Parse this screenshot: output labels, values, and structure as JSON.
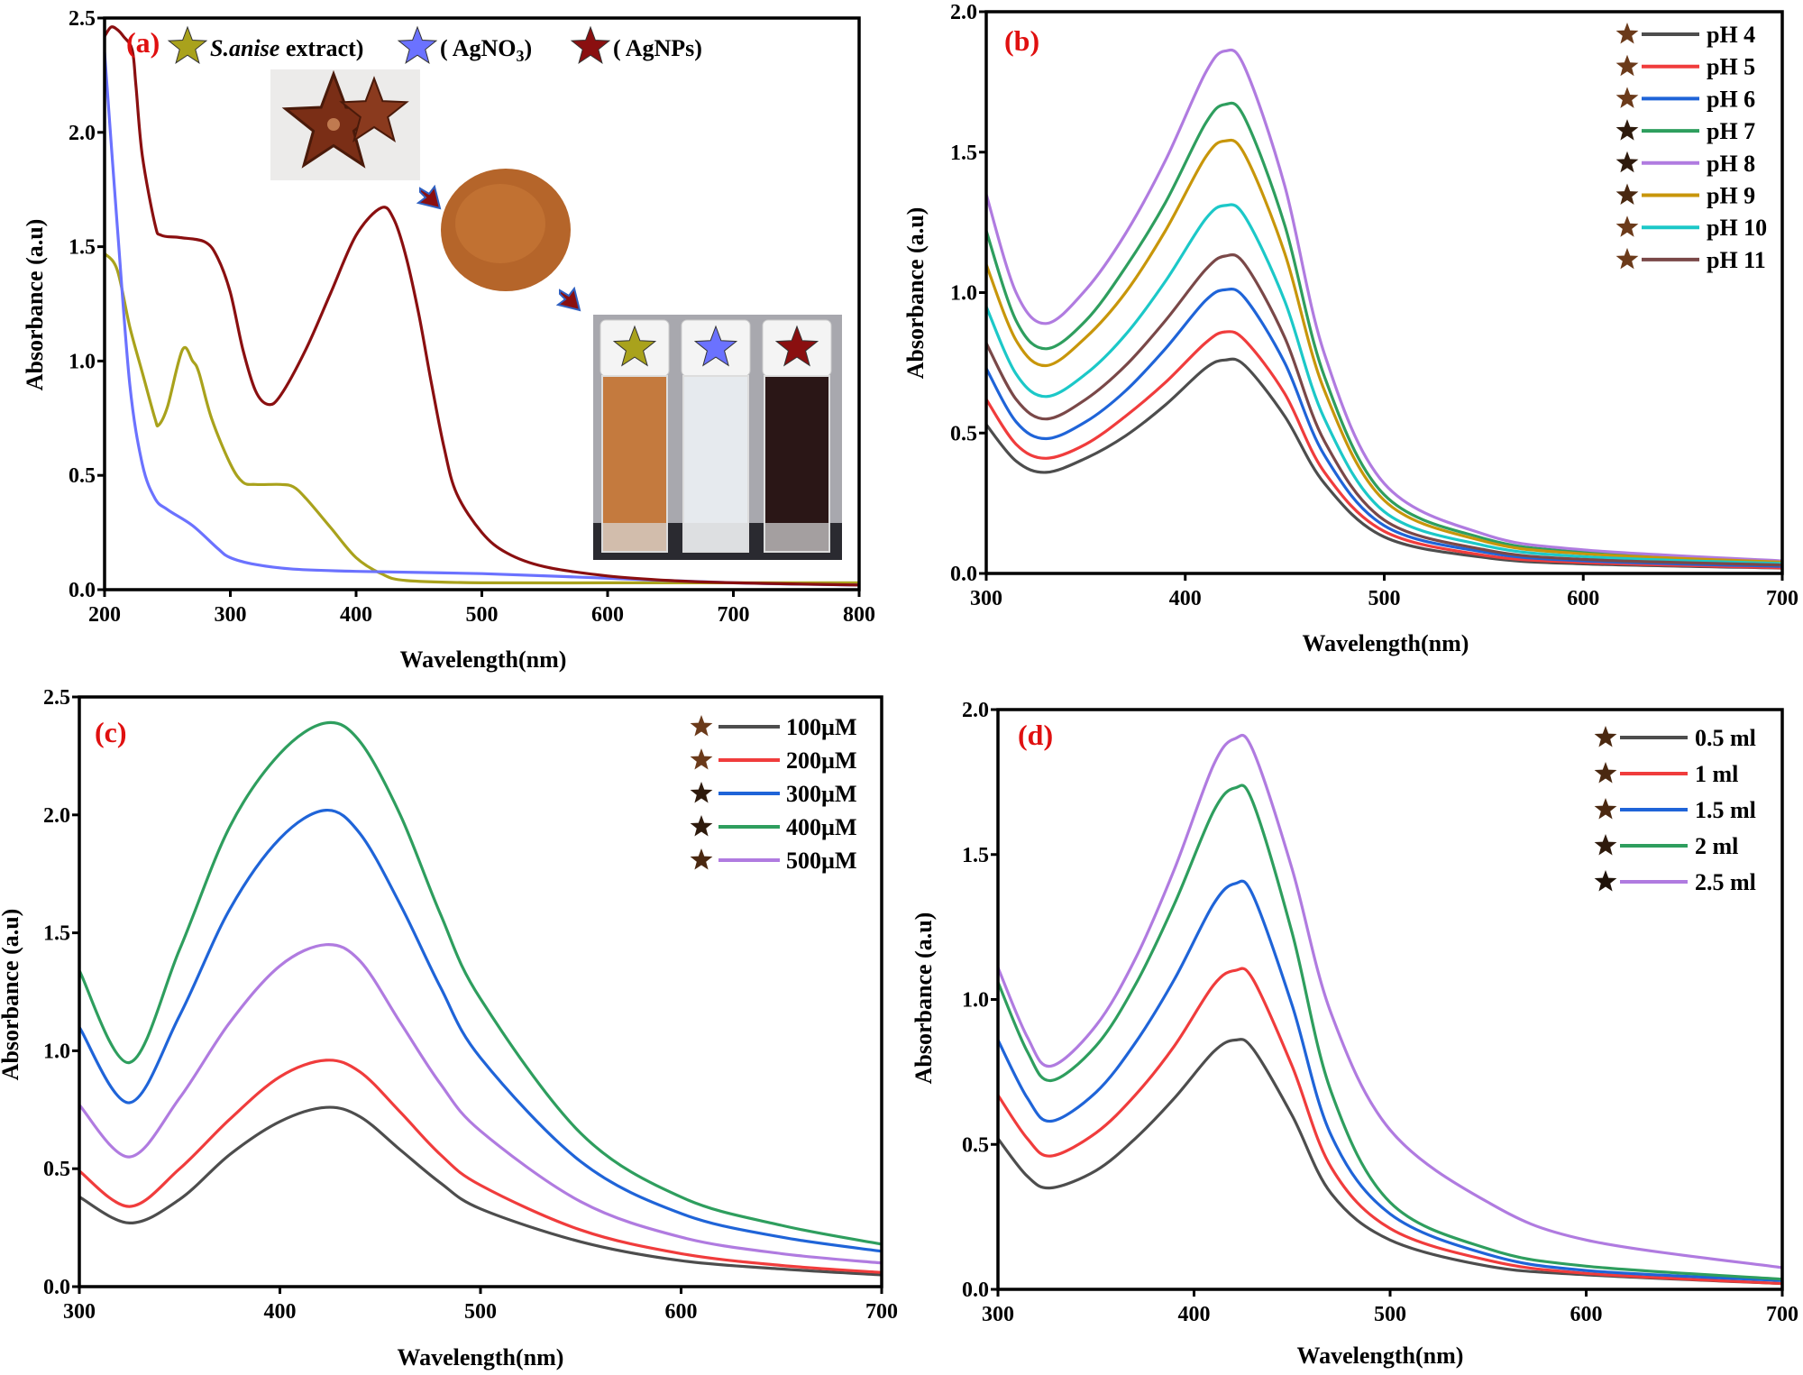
{
  "chart_data": [
    {
      "panel": "(a)",
      "type": "line",
      "xlabel": "Wavelength(nm)",
      "ylabel": "Absorbance (a.u)",
      "xlim": [
        200,
        800
      ],
      "ylim": [
        0,
        2.5
      ],
      "xticks": [
        "200",
        "300",
        "400",
        "500",
        "600",
        "700",
        "800"
      ],
      "yticks": [
        "0.0",
        "0.5",
        "1.0",
        "1.5",
        "2.0",
        "2.5"
      ],
      "legend_position": "top",
      "legend": [
        {
          "italic": "S.anise",
          "text": " extract)",
          "color": "#a9a21c"
        },
        {
          "text": "( AgNO",
          "sub": "3",
          "after": ")",
          "color": "#6b72ff"
        },
        {
          "text": "( AgNPs)",
          "color": "#8a0f10"
        }
      ],
      "series": [
        {
          "name": "S.anise extract",
          "color": "#a9a21c",
          "x": [
            200,
            210,
            220,
            230,
            240,
            243,
            250,
            262,
            270,
            275,
            285,
            300,
            310,
            320,
            340,
            350,
            360,
            380,
            400,
            420,
            440,
            500,
            600,
            700,
            800
          ],
          "y": [
            1.47,
            1.4,
            1.15,
            0.95,
            0.75,
            0.72,
            0.8,
            1.05,
            1.0,
            0.95,
            0.75,
            0.55,
            0.47,
            0.46,
            0.46,
            0.45,
            0.4,
            0.27,
            0.14,
            0.07,
            0.04,
            0.03,
            0.03,
            0.03,
            0.03
          ]
        },
        {
          "name": "AgNO3",
          "color": "#6b72ff",
          "x": [
            200,
            210,
            220,
            230,
            240,
            250,
            270,
            290,
            300,
            320,
            350,
            400,
            500,
            600,
            700,
            800
          ],
          "y": [
            2.35,
            1.6,
            0.9,
            0.55,
            0.4,
            0.35,
            0.28,
            0.18,
            0.14,
            0.11,
            0.09,
            0.08,
            0.07,
            0.05,
            0.03,
            0.02
          ]
        },
        {
          "name": "AgNPs",
          "color": "#8a0f10",
          "x": [
            200,
            205,
            210,
            215,
            222,
            225,
            230,
            240,
            245,
            260,
            280,
            290,
            300,
            310,
            320,
            330,
            340,
            360,
            380,
            400,
            420,
            430,
            440,
            450,
            460,
            470,
            480,
            500,
            520,
            550,
            600,
            650,
            700,
            800
          ],
          "y": [
            2.42,
            2.46,
            2.45,
            2.42,
            2.36,
            2.2,
            1.9,
            1.6,
            1.55,
            1.54,
            1.52,
            1.45,
            1.3,
            1.05,
            0.87,
            0.81,
            0.85,
            1.05,
            1.3,
            1.55,
            1.67,
            1.62,
            1.45,
            1.2,
            0.9,
            0.62,
            0.42,
            0.25,
            0.16,
            0.1,
            0.06,
            0.04,
            0.03,
            0.02
          ]
        }
      ]
    },
    {
      "panel": "(b)",
      "type": "line",
      "xlabel": "Wavelength(nm)",
      "ylabel": "Absorbance (a.u)",
      "xlim": [
        300,
        700
      ],
      "ylim": [
        0,
        2.0
      ],
      "xticks": [
        "300",
        "400",
        "500",
        "600",
        "700"
      ],
      "yticks": [
        "0.0",
        "0.5",
        "1.0",
        "1.5",
        "2.0"
      ],
      "legend_position": "top-right",
      "x": [
        300,
        315,
        330,
        350,
        370,
        390,
        410,
        420,
        430,
        450,
        470,
        500,
        550,
        600,
        700
      ],
      "series": [
        {
          "name": "pH 4",
          "color": "#4d4d4d",
          "star": "#6b3a1a",
          "y": [
            0.53,
            0.4,
            0.36,
            0.41,
            0.49,
            0.6,
            0.73,
            0.76,
            0.74,
            0.56,
            0.32,
            0.13,
            0.057,
            0.034,
            0.019
          ]
        },
        {
          "name": "pH 5",
          "color": "#f03c3c",
          "star": "#6b3a1a",
          "y": [
            0.62,
            0.46,
            0.41,
            0.46,
            0.56,
            0.68,
            0.82,
            0.86,
            0.83,
            0.64,
            0.36,
            0.15,
            0.065,
            0.039,
            0.02
          ]
        },
        {
          "name": "pH 6",
          "color": "#1f64d8",
          "star": "#6b3a1a",
          "y": [
            0.73,
            0.54,
            0.48,
            0.54,
            0.65,
            0.8,
            0.97,
            1.01,
            0.98,
            0.75,
            0.42,
            0.17,
            0.076,
            0.045,
            0.025
          ]
        },
        {
          "name": "pH 7",
          "color": "#2e9e5e",
          "star": "#2e1a0c",
          "y": [
            1.22,
            0.9,
            0.8,
            0.9,
            1.09,
            1.32,
            1.6,
            1.67,
            1.62,
            1.24,
            0.7,
            0.28,
            0.125,
            0.075,
            0.04
          ]
        },
        {
          "name": "pH 8",
          "color": "#b07be0",
          "star": "#2e1a0c",
          "y": [
            1.35,
            1.0,
            0.89,
            1.01,
            1.21,
            1.47,
            1.78,
            1.86,
            1.8,
            1.38,
            0.78,
            0.32,
            0.14,
            0.084,
            0.045
          ]
        },
        {
          "name": "pH 9",
          "color": "#c8960a",
          "star": "#4a2810",
          "y": [
            1.1,
            0.83,
            0.74,
            0.84,
            1.0,
            1.22,
            1.48,
            1.54,
            1.49,
            1.14,
            0.65,
            0.26,
            0.115,
            0.07,
            0.04
          ]
        },
        {
          "name": "pH 10",
          "color": "#1cc8c8",
          "star": "#6b3a1a",
          "y": [
            0.95,
            0.71,
            0.63,
            0.71,
            0.85,
            1.04,
            1.26,
            1.31,
            1.27,
            0.97,
            0.55,
            0.22,
            0.1,
            0.06,
            0.035
          ]
        },
        {
          "name": "pH 11",
          "color": "#7a4848",
          "star": "#6b3a1a",
          "y": [
            0.82,
            0.62,
            0.55,
            0.62,
            0.74,
            0.9,
            1.08,
            1.13,
            1.1,
            0.84,
            0.47,
            0.19,
            0.085,
            0.05,
            0.03
          ]
        }
      ]
    },
    {
      "panel": "(c)",
      "type": "line",
      "xlabel": "Wavelength(nm)",
      "ylabel": "Absorbance (a.u)",
      "xlim": [
        300,
        700
      ],
      "ylim": [
        0,
        2.5
      ],
      "xticks": [
        "300",
        "400",
        "500",
        "600",
        "700"
      ],
      "yticks": [
        "0.0",
        "0.5",
        "1.0",
        "1.5",
        "2.0",
        "2.5"
      ],
      "legend_position": "top-right",
      "x": [
        300,
        325,
        350,
        375,
        400,
        423,
        440,
        460,
        480,
        500,
        550,
        600,
        650,
        700
      ],
      "series": [
        {
          "name": "100µM",
          "color": "#4d4d4d",
          "star": "#6b3a1a",
          "y": [
            0.38,
            0.27,
            0.37,
            0.56,
            0.7,
            0.76,
            0.72,
            0.58,
            0.44,
            0.33,
            0.19,
            0.11,
            0.075,
            0.05
          ]
        },
        {
          "name": "200µM",
          "color": "#f03c3c",
          "star": "#6b3a1a",
          "y": [
            0.49,
            0.34,
            0.5,
            0.71,
            0.89,
            0.96,
            0.91,
            0.74,
            0.56,
            0.43,
            0.24,
            0.14,
            0.09,
            0.06
          ]
        },
        {
          "name": "300µM",
          "color": "#1f64d8",
          "star": "#2e1a0c",
          "y": [
            1.1,
            0.78,
            1.15,
            1.6,
            1.9,
            2.02,
            1.92,
            1.62,
            1.27,
            0.97,
            0.53,
            0.31,
            0.21,
            0.15
          ]
        },
        {
          "name": "400µM",
          "color": "#2e9e5e",
          "star": "#2e1a0c",
          "y": [
            1.34,
            0.95,
            1.43,
            1.95,
            2.26,
            2.39,
            2.31,
            2.0,
            1.58,
            1.22,
            0.65,
            0.38,
            0.26,
            0.18
          ]
        },
        {
          "name": "500µM",
          "color": "#b07be0",
          "star": "#4a2810",
          "y": [
            0.77,
            0.55,
            0.8,
            1.12,
            1.36,
            1.45,
            1.38,
            1.12,
            0.86,
            0.66,
            0.36,
            0.21,
            0.14,
            0.1
          ]
        }
      ]
    },
    {
      "panel": "(d)",
      "type": "line",
      "xlabel": "Wavelength(nm)",
      "ylabel": "Absorbance (a.u)",
      "xlim": [
        300,
        700
      ],
      "ylim": [
        0,
        2.0
      ],
      "xticks": [
        "300",
        "400",
        "500",
        "600",
        "700"
      ],
      "yticks": [
        "0.0",
        "0.5",
        "1.0",
        "1.5",
        "2.0"
      ],
      "legend_position": "top-right",
      "x": [
        300,
        315,
        327,
        350,
        370,
        390,
        410,
        421,
        430,
        450,
        470,
        500,
        550,
        600,
        700
      ],
      "series": [
        {
          "name": "0.5 ml",
          "color": "#4d4d4d",
          "star": "#4a2810",
          "y": [
            0.52,
            0.39,
            0.35,
            0.41,
            0.52,
            0.66,
            0.82,
            0.86,
            0.83,
            0.6,
            0.33,
            0.17,
            0.08,
            0.05,
            0.02
          ]
        },
        {
          "name": "1 ml",
          "color": "#f03c3c",
          "star": "#4a2810",
          "y": [
            0.67,
            0.52,
            0.46,
            0.54,
            0.67,
            0.84,
            1.05,
            1.1,
            1.07,
            0.77,
            0.42,
            0.21,
            0.1,
            0.055,
            0.02
          ]
        },
        {
          "name": "1.5 ml",
          "color": "#1f64d8",
          "star": "#4a2810",
          "y": [
            0.86,
            0.66,
            0.58,
            0.68,
            0.85,
            1.07,
            1.33,
            1.4,
            1.36,
            0.98,
            0.53,
            0.26,
            0.12,
            0.065,
            0.03
          ]
        },
        {
          "name": "2 ml",
          "color": "#2e9e5e",
          "star": "#2e1a0c",
          "y": [
            1.06,
            0.82,
            0.72,
            0.84,
            1.05,
            1.33,
            1.65,
            1.73,
            1.68,
            1.23,
            0.68,
            0.3,
            0.14,
            0.08,
            0.035
          ]
        },
        {
          "name": "2.5 ml",
          "color": "#b07be0",
          "star": "#1e1208",
          "y": [
            1.11,
            0.87,
            0.77,
            0.91,
            1.14,
            1.45,
            1.81,
            1.9,
            1.86,
            1.45,
            0.95,
            0.55,
            0.3,
            0.17,
            0.075
          ]
        }
      ]
    }
  ]
}
